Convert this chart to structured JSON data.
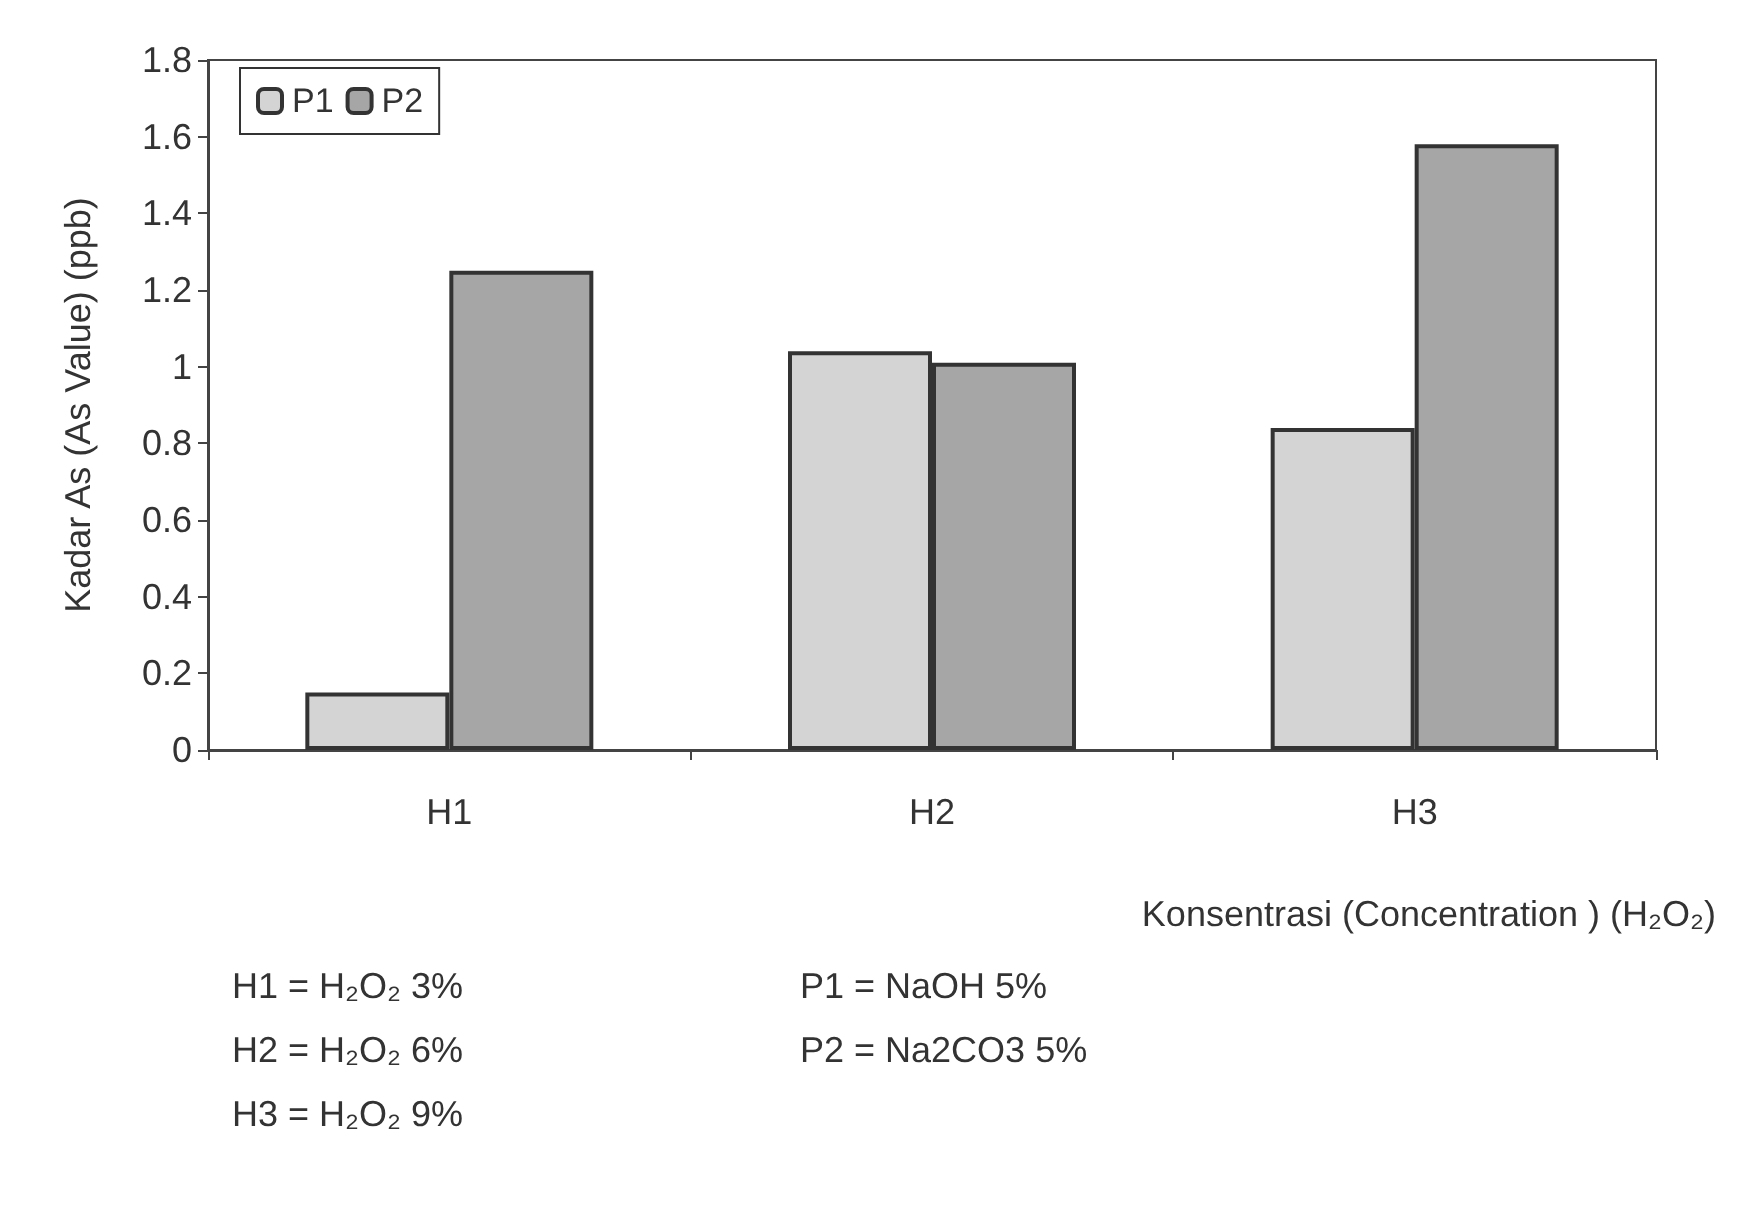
{
  "chart_data": {
    "type": "bar",
    "categories": [
      "H1",
      "H2",
      "H3"
    ],
    "series": [
      {
        "name": "P1",
        "color": "#d4d4d4",
        "values": [
          0.15,
          1.04,
          0.84
        ]
      },
      {
        "name": "P2",
        "color": "#a6a6a6",
        "values": [
          1.25,
          1.01,
          1.58
        ]
      }
    ],
    "ylim": [
      0,
      1.8
    ],
    "yticks": [
      0,
      0.2,
      0.4,
      0.6,
      0.8,
      1,
      1.2,
      1.4,
      1.6,
      1.8
    ],
    "ylabel": "Kadar As (As Value) (ppb)",
    "xlabel": "Konsentrasi (Concentration ) (H₂O₂)",
    "annotations": [
      "H1 = H₂O₂ 3%",
      "H2 = H₂O₂ 6%",
      "H3 = H₂O₂ 9%",
      "P1 = NaOH 5%",
      "P2 = Na2CO3 5%"
    ],
    "grid": false,
    "legend": "top left"
  }
}
